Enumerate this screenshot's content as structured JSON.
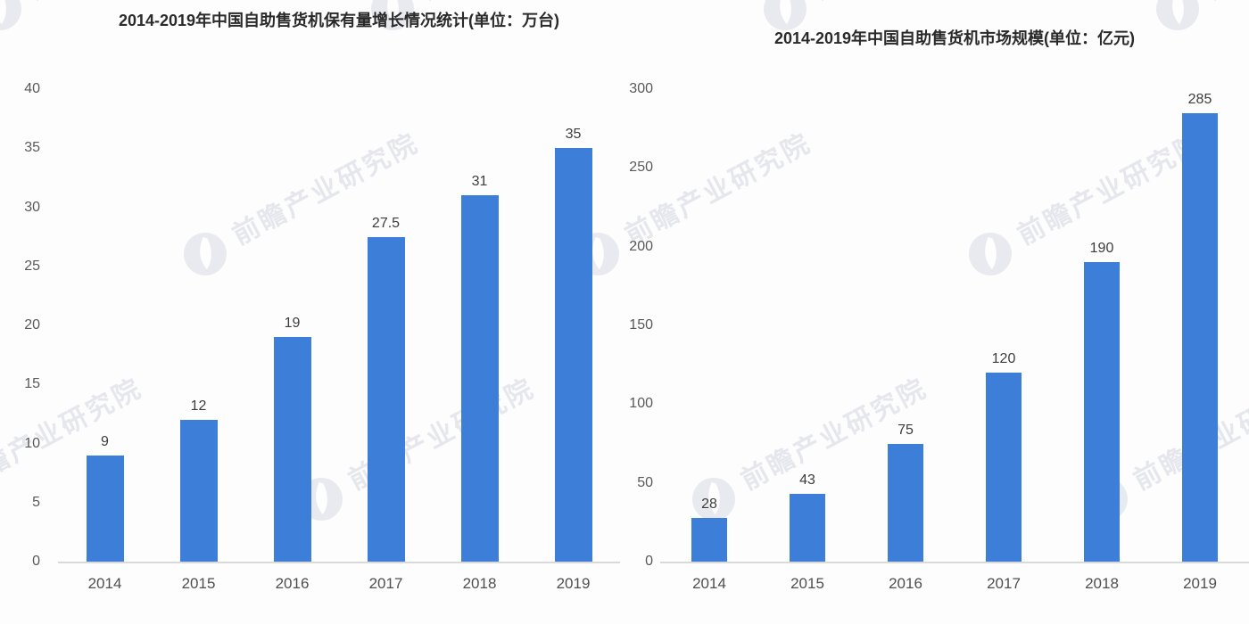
{
  "watermark": {
    "text": "前瞻产业研究院"
  },
  "chart_data": [
    {
      "type": "bar",
      "title": "2014-2019年中国自助售货机保有量增长情况统计(单位：万台)",
      "unit": "万台",
      "categories": [
        "2014",
        "2015",
        "2016",
        "2017",
        "2018",
        "2019"
      ],
      "values": [
        9,
        12,
        19,
        27.5,
        31,
        35
      ],
      "xlabel": "",
      "ylabel": "",
      "ylim": [
        0,
        40
      ],
      "yticks": [
        0,
        5,
        10,
        15,
        20,
        25,
        30,
        35,
        40
      ],
      "grid": false,
      "legend": "none",
      "bar_color": "#3d7fd8",
      "axis_line_color": "#d9d9d9"
    },
    {
      "type": "bar",
      "title": "2014-2019年中国自助售货机市场规模(单位：亿元)",
      "unit": "亿元",
      "categories": [
        "2014",
        "2015",
        "2016",
        "2017",
        "2018",
        "2019"
      ],
      "values": [
        28,
        43,
        75,
        120,
        190,
        285
      ],
      "xlabel": "",
      "ylabel": "",
      "ylim": [
        0,
        300
      ],
      "yticks": [
        0,
        50,
        100,
        150,
        200,
        250,
        300
      ],
      "grid": false,
      "legend": "none",
      "bar_color": "#3d7fd8",
      "axis_line_color": "#d9d9d9"
    }
  ]
}
